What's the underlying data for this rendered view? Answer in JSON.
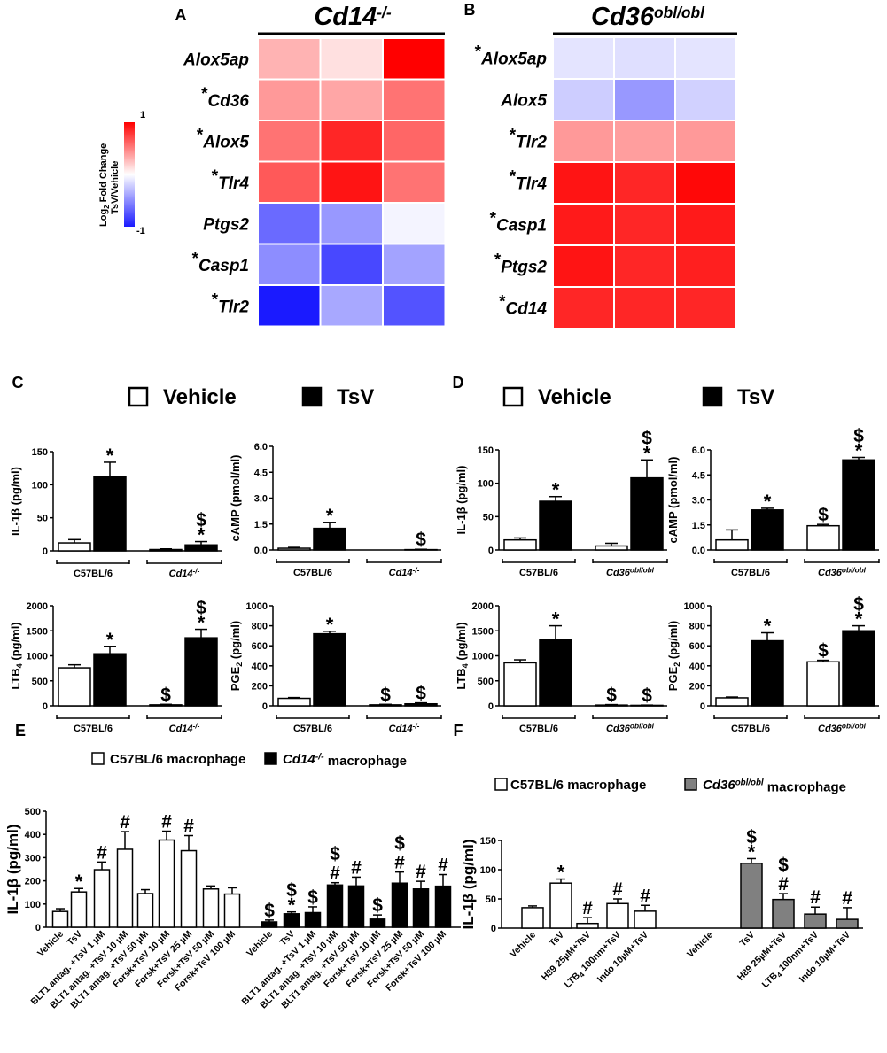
{
  "chart_data": [
    {
      "panel": "A",
      "type": "heatmap",
      "title": "Cd14-/-",
      "title_base": "Cd14",
      "title_sup": "-/-",
      "rows": [
        {
          "label": "Alox5ap",
          "star": "",
          "values": [
            0.3,
            0.12,
            1.0
          ]
        },
        {
          "label": "Cd36",
          "star": "*",
          "values": [
            0.4,
            0.35,
            0.55
          ]
        },
        {
          "label": "Alox5",
          "star": "*",
          "values": [
            0.55,
            0.85,
            0.6
          ]
        },
        {
          "label": "Tlr4",
          "star": "*",
          "values": [
            0.65,
            0.92,
            0.55
          ]
        },
        {
          "label": "Ptgs2",
          "star": "",
          "values": [
            -0.65,
            -0.45,
            -0.05
          ]
        },
        {
          "label": "Casp1",
          "star": "*",
          "values": [
            -0.5,
            -0.8,
            -0.4
          ]
        },
        {
          "label": "Tlr2",
          "star": "*",
          "values": [
            -1.0,
            -0.38,
            -0.75
          ]
        }
      ],
      "colorbar": {
        "label": "Log2 Fold Change TsV/Vehicle",
        "label_line1": "Log",
        "label_sub": "2",
        "label_line1b": " Fold Change",
        "label_line2": "TsV/Vehicle",
        "max_label": "1",
        "min_label": "-1",
        "range": [
          -1,
          1
        ]
      }
    },
    {
      "panel": "B",
      "type": "heatmap",
      "title": "Cd36obl/obl",
      "title_base": "Cd36",
      "title_sup": "obl/obl",
      "rows": [
        {
          "label": "Alox5ap",
          "star": "*",
          "values": [
            -0.12,
            -0.14,
            -0.12
          ]
        },
        {
          "label": "Alox5",
          "star": "",
          "values": [
            -0.22,
            -0.45,
            -0.2
          ]
        },
        {
          "label": "Tlr2",
          "star": "*",
          "values": [
            0.4,
            0.38,
            0.4
          ]
        },
        {
          "label": "Tlr4",
          "star": "*",
          "values": [
            0.92,
            0.85,
            0.97
          ]
        },
        {
          "label": "Casp1",
          "star": "*",
          "values": [
            0.9,
            0.85,
            0.9
          ]
        },
        {
          "label": "Ptgs2",
          "star": "*",
          "values": [
            0.92,
            0.85,
            0.88
          ]
        },
        {
          "label": "Cd14",
          "star": "*",
          "values": [
            0.85,
            0.85,
            0.85
          ]
        }
      ]
    },
    {
      "panel": "C",
      "type": "bar",
      "legend": [
        {
          "name": "Vehicle",
          "color": "#ffffff"
        },
        {
          "name": "TsV",
          "color": "#000000"
        }
      ],
      "subplots": [
        {
          "ylabel": "IL-1β (pg/ml)",
          "ylabel_base": "IL-1β",
          "ylabel_sub": "",
          "ylabel_unit": " (pg/ml)",
          "ylim": [
            0,
            150
          ],
          "ticks": [
            "0",
            "50",
            "100",
            "150"
          ],
          "groups": [
            {
              "label": "C57BL/6",
              "italic": false
            },
            {
              "label": "Cd14-/-",
              "base": "Cd14",
              "sup": "-/-",
              "italic": true
            }
          ],
          "bars": [
            {
              "v": 12,
              "e": 5,
              "fill": "white",
              "m": ""
            },
            {
              "v": 112,
              "e": 22,
              "fill": "black",
              "m": "*"
            },
            {
              "v": 2,
              "e": 1,
              "fill": "white",
              "m": ""
            },
            {
              "v": 9,
              "e": 5,
              "fill": "black",
              "m": "*\n$"
            }
          ]
        },
        {
          "ylabel": "cAMP (pmol/ml)",
          "ylabel_base": "cAMP",
          "ylabel_sub": "",
          "ylabel_unit": " (pmol/ml)",
          "ylim": [
            0,
            6
          ],
          "ticks": [
            "0.0",
            "1.5",
            "3.0",
            "4.5",
            "6.0"
          ],
          "groups": [
            {
              "label": "C57BL/6",
              "italic": false
            },
            {
              "label": "Cd14-/-",
              "base": "Cd14",
              "sup": "-/-",
              "italic": true
            }
          ],
          "bars": [
            {
              "v": 0.1,
              "e": 0.05,
              "fill": "white",
              "m": ""
            },
            {
              "v": 1.25,
              "e": 0.35,
              "fill": "black",
              "m": "*"
            },
            {
              "v": 0,
              "e": 0,
              "fill": "white",
              "m": ""
            },
            {
              "v": 0.02,
              "e": 0.02,
              "fill": "black",
              "m": "$"
            }
          ]
        },
        {
          "ylabel": "LTB4 (pg/ml)",
          "ylabel_base": "LTB",
          "ylabel_sub": "4",
          "ylabel_unit": " (pg/ml)",
          "ylim": [
            0,
            2000
          ],
          "ticks": [
            "0",
            "500",
            "1000",
            "1500",
            "2000"
          ],
          "groups": [
            {
              "label": "C57BL/6",
              "italic": false
            },
            {
              "label": "Cd14-/-",
              "base": "Cd14",
              "sup": "-/-",
              "italic": true
            }
          ],
          "bars": [
            {
              "v": 760,
              "e": 60,
              "fill": "white",
              "m": ""
            },
            {
              "v": 1040,
              "e": 150,
              "fill": "black",
              "m": "*"
            },
            {
              "v": 20,
              "e": 10,
              "fill": "white",
              "m": "$"
            },
            {
              "v": 1360,
              "e": 170,
              "fill": "black",
              "m": "*\n$"
            }
          ]
        },
        {
          "ylabel": "PGE2 (pg/ml)",
          "ylabel_base": "PGE",
          "ylabel_sub": "2",
          "ylabel_unit": " (pg/ml)",
          "ylim": [
            0,
            1000
          ],
          "ticks": [
            "0",
            "200",
            "400",
            "600",
            "800",
            "1000"
          ],
          "groups": [
            {
              "label": "C57BL/6",
              "italic": false
            },
            {
              "label": "Cd14-/-",
              "base": "Cd14",
              "sup": "-/-",
              "italic": true
            }
          ],
          "bars": [
            {
              "v": 75,
              "e": 8,
              "fill": "white",
              "m": ""
            },
            {
              "v": 720,
              "e": 25,
              "fill": "black",
              "m": "*"
            },
            {
              "v": 10,
              "e": 5,
              "fill": "white",
              "m": "$"
            },
            {
              "v": 20,
              "e": 10,
              "fill": "black",
              "m": "$"
            }
          ]
        }
      ]
    },
    {
      "panel": "D",
      "type": "bar",
      "legend": [
        {
          "name": "Vehicle",
          "color": "#ffffff"
        },
        {
          "name": "TsV",
          "color": "#000000"
        }
      ],
      "subplots": [
        {
          "ylabel": "IL-1β (pg/ml)",
          "ylabel_base": "IL-1β",
          "ylabel_sub": "",
          "ylabel_unit": " (pg/ml)",
          "ylim": [
            0,
            150
          ],
          "ticks": [
            "0",
            "50",
            "100",
            "150"
          ],
          "groups": [
            {
              "label": "C57BL/6",
              "italic": false
            },
            {
              "label": "Cd36obl/obl",
              "base": "Cd36",
              "sup": "obl/obl",
              "italic": true
            }
          ],
          "bars": [
            {
              "v": 15,
              "e": 3,
              "fill": "white",
              "m": ""
            },
            {
              "v": 73,
              "e": 7,
              "fill": "black",
              "m": "*"
            },
            {
              "v": 6,
              "e": 4,
              "fill": "white",
              "m": ""
            },
            {
              "v": 108,
              "e": 27,
              "fill": "black",
              "m": "*\n$"
            }
          ]
        },
        {
          "ylabel": "cAMP (pmol/ml)",
          "ylabel_base": "cAMP",
          "ylabel_sub": "",
          "ylabel_unit": " (pmol/ml)",
          "ylim": [
            0,
            6
          ],
          "ticks": [
            "0.0",
            "1.5",
            "3.0",
            "4.5",
            "6.0"
          ],
          "groups": [
            {
              "label": "C57BL/6",
              "italic": false
            },
            {
              "label": "Cd36obl/obl",
              "base": "Cd36",
              "sup": "obl/obl",
              "italic": true
            }
          ],
          "bars": [
            {
              "v": 0.6,
              "e": 0.6,
              "fill": "white",
              "m": ""
            },
            {
              "v": 2.4,
              "e": 0.1,
              "fill": "black",
              "m": "*"
            },
            {
              "v": 1.45,
              "e": 0.08,
              "fill": "white",
              "m": "$"
            },
            {
              "v": 5.4,
              "e": 0.15,
              "fill": "black",
              "m": "*\n$"
            }
          ]
        },
        {
          "ylabel": "LTB4 (pg/ml)",
          "ylabel_base": "LTB",
          "ylabel_sub": "4",
          "ylabel_unit": " (pg/ml)",
          "ylim": [
            0,
            2000
          ],
          "ticks": [
            "0",
            "500",
            "1000",
            "1500",
            "2000"
          ],
          "groups": [
            {
              "label": "C57BL/6",
              "italic": false
            },
            {
              "label": "Cd36obl/obl",
              "base": "Cd36",
              "sup": "obl/obl",
              "italic": true
            }
          ],
          "bars": [
            {
              "v": 860,
              "e": 60,
              "fill": "white",
              "m": ""
            },
            {
              "v": 1320,
              "e": 280,
              "fill": "black",
              "m": "*"
            },
            {
              "v": 15,
              "e": 10,
              "fill": "white",
              "m": "$"
            },
            {
              "v": 10,
              "e": 5,
              "fill": "black",
              "m": "$"
            }
          ]
        },
        {
          "ylabel": "PGE2 (pg/ml)",
          "ylabel_base": "PGE",
          "ylabel_sub": "2",
          "ylabel_unit": " (pg/ml)",
          "ylim": [
            0,
            1000
          ],
          "ticks": [
            "0",
            "200",
            "400",
            "600",
            "800",
            "1000"
          ],
          "groups": [
            {
              "label": "C57BL/6",
              "italic": false
            },
            {
              "label": "Cd36obl/obl",
              "base": "Cd36",
              "sup": "obl/obl",
              "italic": true
            }
          ],
          "bars": [
            {
              "v": 80,
              "e": 8,
              "fill": "white",
              "m": ""
            },
            {
              "v": 650,
              "e": 80,
              "fill": "black",
              "m": "*"
            },
            {
              "v": 440,
              "e": 15,
              "fill": "white",
              "m": "$"
            },
            {
              "v": 750,
              "e": 50,
              "fill": "black",
              "m": "*\n$"
            }
          ]
        }
      ]
    },
    {
      "panel": "E",
      "type": "bar",
      "ylabel": "IL-1β (pg/ml)",
      "ylim": [
        0,
        500
      ],
      "ticks": [
        "0",
        "100",
        "200",
        "300",
        "400",
        "500"
      ],
      "legend": [
        {
          "name": "C57BL/6 macrophage",
          "color": "#ffffff"
        },
        {
          "name": "Cd14-/- macrophage",
          "base": "Cd14",
          "sup": "-/-",
          "rest": " macrophage",
          "color": "#000000"
        }
      ],
      "categories": [
        "Vehicle",
        "TsV",
        "BLT1 antag. +TsV 1 µM",
        "BLT1 antag. +TsV 10 µM",
        "BLT1 antag. +TsV 50 µM",
        "Forsk+TsV 10 µM",
        "Forsk+TsV 25 µM",
        "Forsk+TsV 50 µM",
        "Forsk+TsV 100 µM"
      ],
      "series": [
        {
          "name": "C57BL/6 macrophage",
          "fill": "white",
          "values": [
            68,
            152,
            248,
            336,
            145,
            376,
            330,
            165,
            143
          ],
          "errors": [
            12,
            15,
            33,
            76,
            17,
            38,
            65,
            13,
            27
          ],
          "marks": [
            "",
            "*",
            "#",
            "#",
            "",
            "#",
            "#",
            "",
            ""
          ]
        },
        {
          "name": "Cd14-/- macrophage",
          "fill": "black",
          "values": [
            23,
            58,
            63,
            182,
            178,
            35,
            190,
            165,
            177
          ],
          "errors": [
            8,
            8,
            25,
            10,
            38,
            18,
            48,
            33,
            50
          ],
          "marks": [
            "$",
            "*\n$",
            "$",
            "#\n$",
            "#",
            "$",
            "#\n$",
            "#",
            "#"
          ]
        }
      ]
    },
    {
      "panel": "F",
      "type": "bar",
      "ylabel": "IL-1β (pg/ml)",
      "ylim": [
        0,
        150
      ],
      "ticks": [
        "0",
        "50",
        "100",
        "150"
      ],
      "legend": [
        {
          "name": "C57BL/6 macrophage",
          "color": "#ffffff"
        },
        {
          "name": "Cd36obl/obl macrophage",
          "base": "Cd36",
          "sup": "obl/obl",
          "rest": " macrophage",
          "color": "#808080"
        }
      ],
      "categories": [
        "Vehicle",
        "TsV",
        "H89 25µM+TsV",
        "LTB4 100nm+TsV",
        "Indo 10µM+TsV"
      ],
      "series": [
        {
          "name": "C57BL/6 macrophage",
          "fill": "white",
          "values": [
            35,
            77,
            8,
            42,
            29
          ],
          "errors": [
            3,
            7,
            10,
            8,
            10
          ],
          "marks": [
            "",
            "*",
            "#",
            "#",
            "#"
          ]
        },
        {
          "name": "Cd36obl/obl macrophage",
          "fill": "gray",
          "values": [
            0,
            111,
            49,
            24,
            15
          ],
          "errors": [
            0,
            8,
            10,
            12,
            20
          ],
          "marks": [
            "",
            "*\n$",
            "#\n$",
            "#",
            "#"
          ]
        }
      ]
    }
  ],
  "panel_letters": [
    "A",
    "B",
    "C",
    "D",
    "E",
    "F"
  ],
  "heat_colors": {
    "high": "#ff0000",
    "mid": "#ffffff",
    "low": "#1a1aff"
  }
}
